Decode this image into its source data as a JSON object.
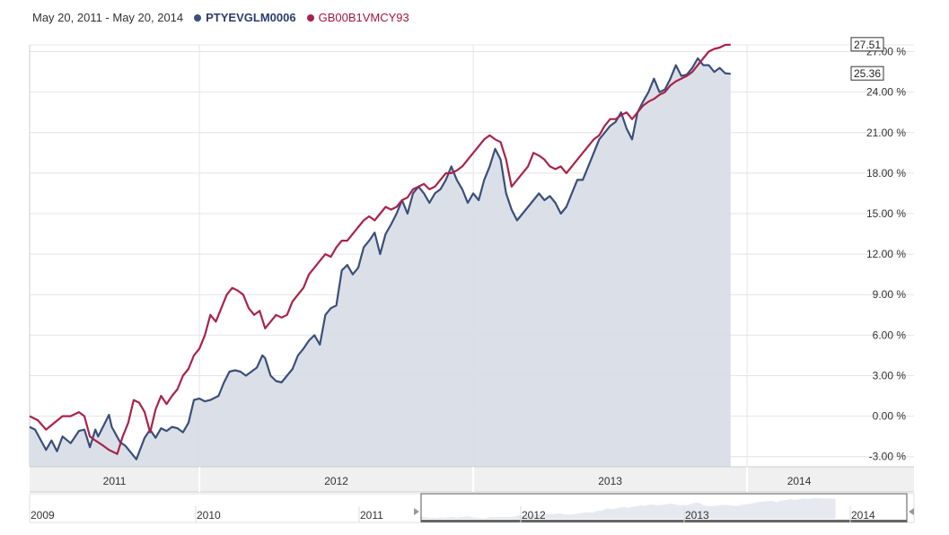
{
  "header": {
    "date_range": "May 20, 2011 - May 20, 2014"
  },
  "colors": {
    "series1": "#3b4f7a",
    "series1_fill": "#d7dde6",
    "series2": "#a8234a",
    "grid": "#e4e4e4",
    "band": "#f0f0f0"
  },
  "chart_data": {
    "type": "line",
    "title": "",
    "xlabel": "",
    "ylabel": "",
    "ylim": [
      -3.75,
      27.5
    ],
    "y_ticks": [
      -3,
      0,
      3,
      6,
      9,
      12,
      15,
      18,
      21,
      24,
      27
    ],
    "y_tick_labels": [
      "-3.00 %",
      "0.00 %",
      "3.00 %",
      "6.00 %",
      "9.00 %",
      "12.00 %",
      "15.00 %",
      "18.00 %",
      "21.00 %",
      "24.00 %",
      "27.00 %"
    ],
    "x_range": [
      2011.38,
      2014.38
    ],
    "year_bands": [
      {
        "label": "2011",
        "start": 2011.38,
        "end": 2012.0
      },
      {
        "label": "2012",
        "start": 2012.0,
        "end": 2013.0
      },
      {
        "label": "2013",
        "start": 2013.0,
        "end": 2014.0
      },
      {
        "label": "2014",
        "start": 2014.0,
        "end": 2014.38
      }
    ],
    "navigator_labels": [
      "2009",
      "2010",
      "2011",
      "2012",
      "2013",
      "2014"
    ],
    "series": [
      {
        "name": "PTYEVGLM0006",
        "last_value_label": "25.36",
        "filled": true,
        "points": [
          [
            2011.38,
            -0.8
          ],
          [
            2011.4,
            -1.0
          ],
          [
            2011.44,
            -2.5
          ],
          [
            2011.46,
            -1.8
          ],
          [
            2011.48,
            -2.6
          ],
          [
            2011.5,
            -1.5
          ],
          [
            2011.53,
            -2.0
          ],
          [
            2011.56,
            -1.1
          ],
          [
            2011.58,
            -1.0
          ],
          [
            2011.6,
            -2.3
          ],
          [
            2011.62,
            -1.0
          ],
          [
            2011.63,
            -1.5
          ],
          [
            2011.67,
            0.1
          ],
          [
            2011.68,
            -0.8
          ],
          [
            2011.71,
            -1.9
          ],
          [
            2011.73,
            -2.2
          ],
          [
            2011.75,
            -2.7
          ],
          [
            2011.77,
            -3.2
          ],
          [
            2011.8,
            -1.6
          ],
          [
            2011.82,
            -1.0
          ],
          [
            2011.84,
            -1.6
          ],
          [
            2011.86,
            -0.9
          ],
          [
            2011.88,
            -1.1
          ],
          [
            2011.9,
            -0.8
          ],
          [
            2011.92,
            -0.9
          ],
          [
            2011.94,
            -1.2
          ],
          [
            2011.96,
            -0.5
          ],
          [
            2011.98,
            1.2
          ],
          [
            2012.0,
            1.3
          ],
          [
            2012.02,
            1.1
          ],
          [
            2012.04,
            1.2
          ],
          [
            2012.07,
            1.5
          ],
          [
            2012.09,
            2.5
          ],
          [
            2012.11,
            3.3
          ],
          [
            2012.13,
            3.4
          ],
          [
            2012.15,
            3.3
          ],
          [
            2012.17,
            3.0
          ],
          [
            2012.19,
            3.3
          ],
          [
            2012.21,
            3.6
          ],
          [
            2012.23,
            4.5
          ],
          [
            2012.24,
            4.3
          ],
          [
            2012.26,
            3.0
          ],
          [
            2012.28,
            2.6
          ],
          [
            2012.3,
            2.5
          ],
          [
            2012.32,
            3.0
          ],
          [
            2012.34,
            3.5
          ],
          [
            2012.36,
            4.5
          ],
          [
            2012.38,
            5.0
          ],
          [
            2012.4,
            5.6
          ],
          [
            2012.42,
            6.0
          ],
          [
            2012.44,
            5.3
          ],
          [
            2012.46,
            7.5
          ],
          [
            2012.48,
            8.0
          ],
          [
            2012.5,
            8.2
          ],
          [
            2012.52,
            10.8
          ],
          [
            2012.54,
            11.2
          ],
          [
            2012.56,
            10.5
          ],
          [
            2012.58,
            11.0
          ],
          [
            2012.6,
            12.5
          ],
          [
            2012.62,
            13.0
          ],
          [
            2012.64,
            13.6
          ],
          [
            2012.66,
            12.0
          ],
          [
            2012.68,
            13.5
          ],
          [
            2012.7,
            14.2
          ],
          [
            2012.72,
            15.0
          ],
          [
            2012.74,
            16.0
          ],
          [
            2012.76,
            15.0
          ],
          [
            2012.78,
            16.5
          ],
          [
            2012.8,
            17.0
          ],
          [
            2012.82,
            16.5
          ],
          [
            2012.84,
            15.8
          ],
          [
            2012.86,
            16.5
          ],
          [
            2012.88,
            16.8
          ],
          [
            2012.9,
            17.5
          ],
          [
            2012.92,
            18.5
          ],
          [
            2012.94,
            17.5
          ],
          [
            2012.96,
            16.8
          ],
          [
            2012.98,
            15.8
          ],
          [
            2013.0,
            16.5
          ],
          [
            2013.02,
            16.0
          ],
          [
            2013.04,
            17.5
          ],
          [
            2013.06,
            18.5
          ],
          [
            2013.08,
            19.8
          ],
          [
            2013.1,
            19.0
          ],
          [
            2013.12,
            16.5
          ],
          [
            2013.14,
            15.3
          ],
          [
            2013.16,
            14.5
          ],
          [
            2013.18,
            15.0
          ],
          [
            2013.2,
            15.5
          ],
          [
            2013.22,
            16.0
          ],
          [
            2013.24,
            16.5
          ],
          [
            2013.26,
            16.0
          ],
          [
            2013.28,
            16.3
          ],
          [
            2013.3,
            15.8
          ],
          [
            2013.32,
            15.0
          ],
          [
            2013.34,
            15.5
          ],
          [
            2013.36,
            16.5
          ],
          [
            2013.38,
            17.5
          ],
          [
            2013.4,
            17.5
          ],
          [
            2013.42,
            18.5
          ],
          [
            2013.44,
            19.5
          ],
          [
            2013.46,
            20.5
          ],
          [
            2013.48,
            21.0
          ],
          [
            2013.5,
            21.5
          ],
          [
            2013.52,
            21.8
          ],
          [
            2013.54,
            22.5
          ],
          [
            2013.56,
            21.3
          ],
          [
            2013.58,
            20.5
          ],
          [
            2013.6,
            22.5
          ],
          [
            2013.62,
            23.3
          ],
          [
            2013.64,
            24.0
          ],
          [
            2013.66,
            25.0
          ],
          [
            2013.68,
            24.0
          ],
          [
            2013.7,
            24.2
          ],
          [
            2013.72,
            25.0
          ],
          [
            2013.74,
            26.0
          ],
          [
            2013.76,
            25.2
          ],
          [
            2013.78,
            25.3
          ],
          [
            2013.8,
            25.8
          ],
          [
            2013.82,
            26.5
          ],
          [
            2013.84,
            26.0
          ],
          [
            2013.86,
            26.0
          ],
          [
            2013.88,
            25.5
          ],
          [
            2013.9,
            25.8
          ],
          [
            2013.92,
            25.4
          ],
          [
            2013.94,
            25.36
          ]
        ]
      },
      {
        "name": "GB00B1VMCY93",
        "last_value_label": "27.51",
        "filled": false,
        "points": [
          [
            2011.38,
            0.0
          ],
          [
            2011.41,
            -0.3
          ],
          [
            2011.44,
            -1.0
          ],
          [
            2011.47,
            -0.5
          ],
          [
            2011.5,
            0.0
          ],
          [
            2011.53,
            0.0
          ],
          [
            2011.56,
            0.3
          ],
          [
            2011.58,
            0.0
          ],
          [
            2011.6,
            -1.5
          ],
          [
            2011.62,
            -1.8
          ],
          [
            2011.65,
            -2.2
          ],
          [
            2011.67,
            -2.5
          ],
          [
            2011.7,
            -2.8
          ],
          [
            2011.72,
            -1.5
          ],
          [
            2011.74,
            -0.5
          ],
          [
            2011.76,
            1.2
          ],
          [
            2011.78,
            1.0
          ],
          [
            2011.8,
            0.3
          ],
          [
            2011.82,
            -1.2
          ],
          [
            2011.84,
            0.5
          ],
          [
            2011.86,
            1.5
          ],
          [
            2011.88,
            0.9
          ],
          [
            2011.9,
            1.5
          ],
          [
            2011.92,
            2.0
          ],
          [
            2011.94,
            3.0
          ],
          [
            2011.96,
            3.5
          ],
          [
            2011.98,
            4.5
          ],
          [
            2012.0,
            5.0
          ],
          [
            2012.02,
            6.0
          ],
          [
            2012.04,
            7.5
          ],
          [
            2012.06,
            7.0
          ],
          [
            2012.08,
            8.0
          ],
          [
            2012.1,
            9.0
          ],
          [
            2012.12,
            9.5
          ],
          [
            2012.14,
            9.3
          ],
          [
            2012.16,
            9.0
          ],
          [
            2012.18,
            8.0
          ],
          [
            2012.2,
            7.5
          ],
          [
            2012.22,
            7.8
          ],
          [
            2012.24,
            6.5
          ],
          [
            2012.26,
            7.0
          ],
          [
            2012.28,
            7.5
          ],
          [
            2012.3,
            7.3
          ],
          [
            2012.32,
            7.5
          ],
          [
            2012.34,
            8.5
          ],
          [
            2012.36,
            9.0
          ],
          [
            2012.38,
            9.5
          ],
          [
            2012.4,
            10.5
          ],
          [
            2012.42,
            11.0
          ],
          [
            2012.44,
            11.5
          ],
          [
            2012.46,
            12.0
          ],
          [
            2012.48,
            11.8
          ],
          [
            2012.5,
            12.5
          ],
          [
            2012.52,
            13.0
          ],
          [
            2012.54,
            13.0
          ],
          [
            2012.56,
            13.5
          ],
          [
            2012.58,
            14.0
          ],
          [
            2012.6,
            14.5
          ],
          [
            2012.62,
            14.8
          ],
          [
            2012.64,
            14.5
          ],
          [
            2012.66,
            15.0
          ],
          [
            2012.68,
            15.5
          ],
          [
            2012.7,
            15.3
          ],
          [
            2012.72,
            15.5
          ],
          [
            2012.74,
            16.0
          ],
          [
            2012.76,
            16.2
          ],
          [
            2012.78,
            16.8
          ],
          [
            2012.8,
            17.0
          ],
          [
            2012.82,
            17.2
          ],
          [
            2012.84,
            16.8
          ],
          [
            2012.86,
            17.0
          ],
          [
            2012.88,
            17.5
          ],
          [
            2012.9,
            18.0
          ],
          [
            2012.92,
            18.0
          ],
          [
            2012.94,
            18.2
          ],
          [
            2012.96,
            18.5
          ],
          [
            2012.98,
            19.0
          ],
          [
            2013.0,
            19.5
          ],
          [
            2013.02,
            20.0
          ],
          [
            2013.04,
            20.5
          ],
          [
            2013.06,
            20.8
          ],
          [
            2013.08,
            20.5
          ],
          [
            2013.1,
            20.3
          ],
          [
            2013.12,
            19.0
          ],
          [
            2013.14,
            17.0
          ],
          [
            2013.16,
            17.5
          ],
          [
            2013.18,
            18.0
          ],
          [
            2013.2,
            18.5
          ],
          [
            2013.22,
            19.5
          ],
          [
            2013.24,
            19.3
          ],
          [
            2013.26,
            19.0
          ],
          [
            2013.28,
            18.5
          ],
          [
            2013.3,
            18.3
          ],
          [
            2013.32,
            18.5
          ],
          [
            2013.34,
            18.0
          ],
          [
            2013.36,
            18.5
          ],
          [
            2013.38,
            19.0
          ],
          [
            2013.4,
            19.5
          ],
          [
            2013.42,
            20.0
          ],
          [
            2013.44,
            20.5
          ],
          [
            2013.46,
            20.8
          ],
          [
            2013.48,
            21.5
          ],
          [
            2013.5,
            22.0
          ],
          [
            2013.52,
            22.0
          ],
          [
            2013.54,
            22.3
          ],
          [
            2013.56,
            22.5
          ],
          [
            2013.58,
            22.0
          ],
          [
            2013.6,
            22.5
          ],
          [
            2013.62,
            23.0
          ],
          [
            2013.64,
            23.3
          ],
          [
            2013.66,
            23.5
          ],
          [
            2013.68,
            23.8
          ],
          [
            2013.7,
            24.0
          ],
          [
            2013.72,
            24.5
          ],
          [
            2013.74,
            24.8
          ],
          [
            2013.76,
            25.0
          ],
          [
            2013.78,
            25.2
          ],
          [
            2013.8,
            25.5
          ],
          [
            2013.82,
            26.0
          ],
          [
            2013.84,
            26.5
          ],
          [
            2013.86,
            27.0
          ],
          [
            2013.88,
            27.2
          ],
          [
            2013.9,
            27.3
          ],
          [
            2013.92,
            27.5
          ],
          [
            2013.94,
            27.51
          ]
        ]
      }
    ]
  }
}
